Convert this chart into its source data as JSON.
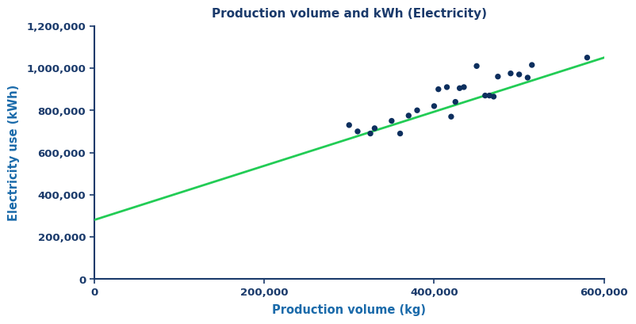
{
  "title": "Production volume and kWh (Electricity)",
  "xlabel": "Production volume (kg)",
  "ylabel": "Electricity use (kWh)",
  "title_color": "#1a3a6b",
  "label_color": "#1a6aaa",
  "dot_color": "#0d2f5e",
  "line_color": "#22cc55",
  "background_color": "#ffffff",
  "spine_color": "#1a3a6b",
  "tick_label_color": "#1a3a6b",
  "xlim": [
    0,
    600000
  ],
  "ylim": [
    0,
    1200000
  ],
  "xticks": [
    0,
    200000,
    400000,
    600000
  ],
  "yticks": [
    0,
    200000,
    400000,
    600000,
    800000,
    1000000,
    1200000
  ],
  "scatter_x": [
    300000,
    310000,
    325000,
    330000,
    350000,
    360000,
    370000,
    380000,
    400000,
    405000,
    415000,
    420000,
    425000,
    430000,
    435000,
    450000,
    460000,
    465000,
    470000,
    475000,
    490000,
    500000,
    510000,
    515000,
    580000
  ],
  "scatter_y": [
    730000,
    700000,
    690000,
    715000,
    750000,
    690000,
    775000,
    800000,
    820000,
    900000,
    910000,
    770000,
    840000,
    905000,
    910000,
    1010000,
    870000,
    870000,
    865000,
    960000,
    975000,
    970000,
    955000,
    1015000,
    1050000
  ],
  "line_x0": 0,
  "line_x1": 600000,
  "line_intercept": 280000,
  "line_slope": 1.28333,
  "title_fontsize": 11,
  "label_fontsize": 10.5,
  "tick_fontsize": 9.5
}
